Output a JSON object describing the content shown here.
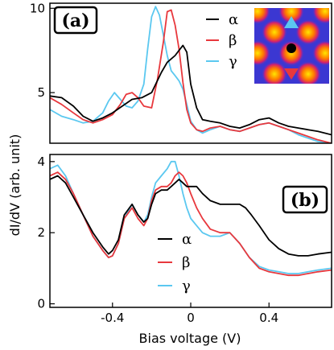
{
  "chart_data": [
    {
      "type": "line",
      "panel_label": "(a)",
      "xlabel": "Bias voltage (V)",
      "ylabel": "dI/dV (arb. unit)",
      "xlim": [
        -0.72,
        0.72
      ],
      "ylim": [
        2,
        10.3
      ],
      "y_ticks": [
        "5",
        "10"
      ],
      "y_tick_values": [
        5,
        10
      ],
      "legend_position": "top-right",
      "inset": {
        "description": "STM map inset",
        "markers": [
          "blue-triangle-up",
          "black-dot",
          "red-triangle-down"
        ]
      },
      "series": [
        {
          "name": "α",
          "color": "#000000",
          "x": [
            -0.72,
            -0.66,
            -0.6,
            -0.55,
            -0.5,
            -0.45,
            -0.4,
            -0.35,
            -0.3,
            -0.25,
            -0.2,
            -0.15,
            -0.12,
            -0.08,
            -0.06,
            -0.04,
            -0.02,
            0.0,
            0.03,
            0.06,
            0.1,
            0.15,
            0.2,
            0.25,
            0.3,
            0.35,
            0.4,
            0.45,
            0.5,
            0.55,
            0.6,
            0.65,
            0.72
          ],
          "y": [
            4.8,
            4.7,
            4.2,
            3.6,
            3.3,
            3.5,
            3.8,
            4.2,
            4.6,
            4.7,
            5.0,
            6.2,
            6.8,
            7.2,
            7.5,
            7.8,
            7.4,
            5.5,
            4.1,
            3.4,
            3.3,
            3.2,
            3.0,
            2.9,
            3.1,
            3.4,
            3.5,
            3.2,
            3.0,
            2.9,
            2.8,
            2.7,
            2.5
          ]
        },
        {
          "name": "β",
          "color": "#e8383d",
          "x": [
            -0.72,
            -0.66,
            -0.6,
            -0.55,
            -0.5,
            -0.45,
            -0.4,
            -0.36,
            -0.33,
            -0.3,
            -0.27,
            -0.24,
            -0.2,
            -0.17,
            -0.14,
            -0.12,
            -0.1,
            -0.08,
            -0.06,
            -0.04,
            -0.02,
            0.0,
            0.03,
            0.06,
            0.1,
            0.15,
            0.2,
            0.25,
            0.3,
            0.35,
            0.4,
            0.45,
            0.5,
            0.55,
            0.6,
            0.65,
            0.72
          ],
          "y": [
            4.7,
            4.3,
            3.8,
            3.4,
            3.2,
            3.4,
            3.7,
            4.3,
            4.9,
            5.0,
            4.7,
            4.2,
            4.1,
            5.8,
            8.0,
            9.8,
            9.9,
            9.0,
            7.6,
            5.6,
            4.0,
            3.2,
            2.8,
            2.7,
            2.9,
            3.0,
            2.8,
            2.7,
            2.9,
            3.1,
            3.2,
            3.0,
            2.8,
            2.6,
            2.4,
            2.2,
            2.0
          ]
        },
        {
          "name": "γ",
          "color": "#5bc8f0",
          "x": [
            -0.72,
            -0.66,
            -0.6,
            -0.55,
            -0.5,
            -0.45,
            -0.42,
            -0.39,
            -0.36,
            -0.33,
            -0.3,
            -0.27,
            -0.24,
            -0.22,
            -0.2,
            -0.18,
            -0.16,
            -0.14,
            -0.12,
            -0.1,
            -0.08,
            -0.06,
            -0.04,
            -0.02,
            0.0,
            0.03,
            0.06,
            0.1,
            0.15,
            0.2,
            0.25,
            0.3,
            0.35,
            0.4,
            0.45,
            0.5,
            0.55,
            0.6,
            0.65,
            0.72
          ],
          "y": [
            4.0,
            3.6,
            3.4,
            3.2,
            3.3,
            3.8,
            4.5,
            5.0,
            4.6,
            4.2,
            4.1,
            4.5,
            5.5,
            7.6,
            9.5,
            10.1,
            9.6,
            8.4,
            7.2,
            6.3,
            6.0,
            5.7,
            5.2,
            4.3,
            3.3,
            2.8,
            2.6,
            2.8,
            3.0,
            2.8,
            2.7,
            2.9,
            3.1,
            3.2,
            3.0,
            2.8,
            2.5,
            2.3,
            2.1,
            2.0
          ]
        }
      ]
    },
    {
      "type": "line",
      "panel_label": "(b)",
      "xlabel": "Bias voltage (V)",
      "ylabel": "dI/dV (arb. unit)",
      "xlim": [
        -0.72,
        0.72
      ],
      "ylim": [
        -0.1,
        4.2
      ],
      "x_ticks": [
        "-0.4",
        "0",
        "0.4"
      ],
      "x_tick_values": [
        -0.4,
        0,
        0.4
      ],
      "y_ticks": [
        "0",
        "2",
        "4"
      ],
      "y_tick_values": [
        0,
        2,
        4
      ],
      "legend_position": "center",
      "series": [
        {
          "name": "α",
          "color": "#000000",
          "x": [
            -0.72,
            -0.68,
            -0.64,
            -0.6,
            -0.55,
            -0.5,
            -0.45,
            -0.42,
            -0.4,
            -0.37,
            -0.34,
            -0.3,
            -0.27,
            -0.24,
            -0.22,
            -0.2,
            -0.18,
            -0.15,
            -0.12,
            -0.1,
            -0.08,
            -0.06,
            -0.04,
            -0.02,
            0.0,
            0.03,
            0.06,
            0.1,
            0.15,
            0.2,
            0.25,
            0.28,
            0.31,
            0.35,
            0.4,
            0.45,
            0.5,
            0.55,
            0.6,
            0.65,
            0.72
          ],
          "y": [
            3.5,
            3.6,
            3.4,
            3.0,
            2.5,
            2.0,
            1.6,
            1.4,
            1.5,
            1.8,
            2.5,
            2.8,
            2.5,
            2.3,
            2.4,
            2.8,
            3.1,
            3.2,
            3.2,
            3.3,
            3.4,
            3.5,
            3.4,
            3.3,
            3.3,
            3.3,
            3.1,
            2.9,
            2.8,
            2.8,
            2.8,
            2.7,
            2.5,
            2.2,
            1.8,
            1.55,
            1.4,
            1.35,
            1.35,
            1.4,
            1.45
          ]
        },
        {
          "name": "β",
          "color": "#e8383d",
          "x": [
            -0.72,
            -0.68,
            -0.64,
            -0.6,
            -0.55,
            -0.5,
            -0.45,
            -0.42,
            -0.4,
            -0.37,
            -0.34,
            -0.3,
            -0.27,
            -0.24,
            -0.22,
            -0.2,
            -0.18,
            -0.15,
            -0.12,
            -0.1,
            -0.08,
            -0.06,
            -0.04,
            -0.02,
            0.0,
            0.03,
            0.06,
            0.1,
            0.15,
            0.2,
            0.25,
            0.3,
            0.35,
            0.4,
            0.45,
            0.5,
            0.55,
            0.6,
            0.65,
            0.72
          ],
          "y": [
            3.6,
            3.7,
            3.5,
            3.1,
            2.5,
            1.9,
            1.5,
            1.3,
            1.35,
            1.7,
            2.4,
            2.7,
            2.4,
            2.2,
            2.4,
            2.9,
            3.2,
            3.3,
            3.3,
            3.4,
            3.6,
            3.7,
            3.6,
            3.4,
            3.1,
            2.7,
            2.4,
            2.1,
            2.0,
            2.0,
            1.7,
            1.3,
            1.0,
            0.9,
            0.85,
            0.8,
            0.8,
            0.85,
            0.9,
            0.95
          ]
        },
        {
          "name": "γ",
          "color": "#5bc8f0",
          "x": [
            -0.72,
            -0.68,
            -0.64,
            -0.6,
            -0.55,
            -0.5,
            -0.45,
            -0.42,
            -0.4,
            -0.37,
            -0.34,
            -0.3,
            -0.27,
            -0.24,
            -0.22,
            -0.2,
            -0.18,
            -0.15,
            -0.12,
            -0.1,
            -0.08,
            -0.06,
            -0.04,
            -0.02,
            0.0,
            0.03,
            0.06,
            0.1,
            0.15,
            0.2,
            0.25,
            0.3,
            0.35,
            0.4,
            0.45,
            0.5,
            0.55,
            0.6,
            0.65,
            0.72
          ],
          "y": [
            3.8,
            3.9,
            3.6,
            3.1,
            2.5,
            1.9,
            1.5,
            1.3,
            1.35,
            1.7,
            2.4,
            2.8,
            2.5,
            2.3,
            2.5,
            3.0,
            3.4,
            3.6,
            3.8,
            4.0,
            4.0,
            3.6,
            3.1,
            2.7,
            2.4,
            2.2,
            2.0,
            1.9,
            1.9,
            2.0,
            1.7,
            1.3,
            1.05,
            0.95,
            0.9,
            0.85,
            0.85,
            0.9,
            0.95,
            1.0
          ]
        }
      ]
    }
  ]
}
